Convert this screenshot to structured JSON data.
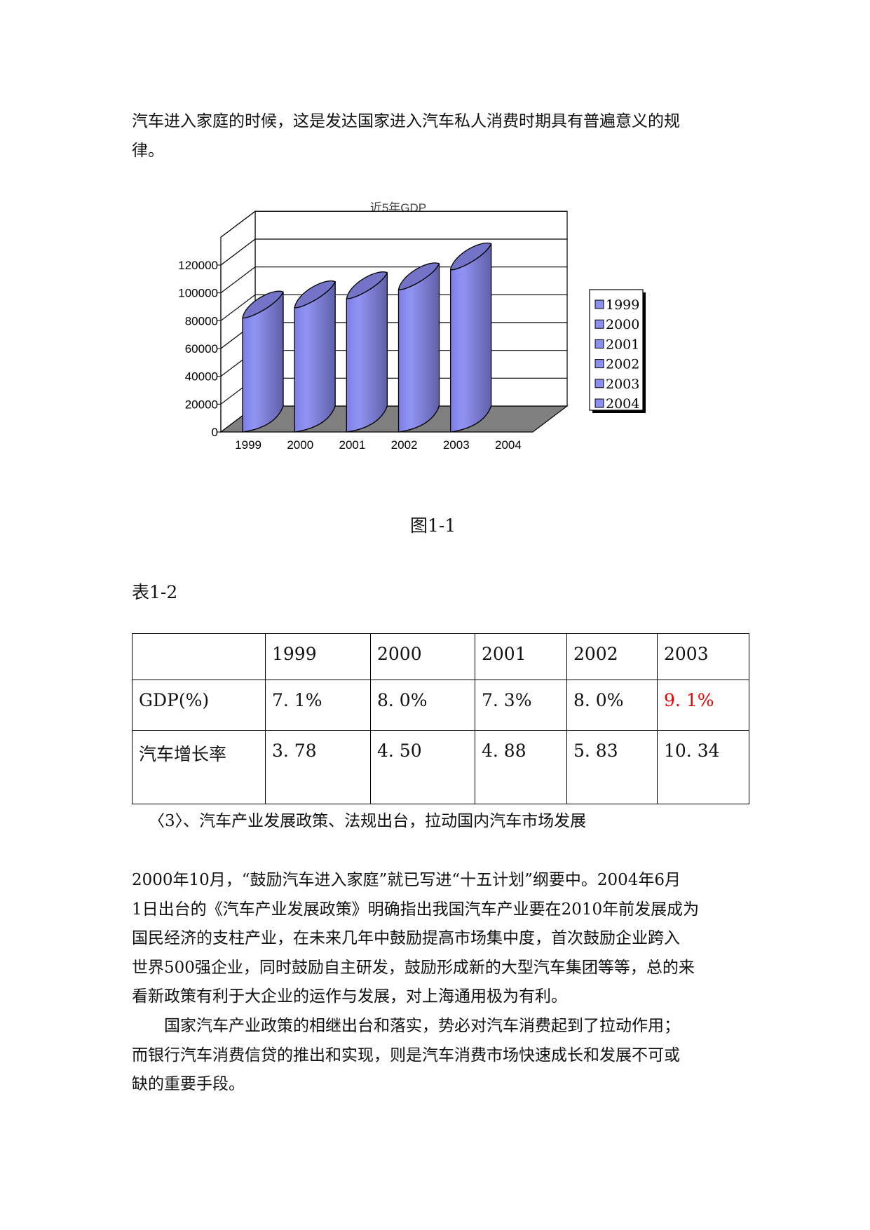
{
  "intro_lines": [
    "汽车进入家庭的时候，这是发达国家进入汽车私人消费时期具有普遍意义的规",
    "律。"
  ],
  "figure_caption": "图1-1",
  "table_caption": "表1-2",
  "chart_data": {
    "type": "bar",
    "style": "3d-cylinder",
    "title": "近5年GDP",
    "categories": [
      "1999",
      "2000",
      "2001",
      "2002",
      "2003",
      "2004"
    ],
    "values": [
      82067,
      89442,
      95933,
      102398,
      116694,
      0
    ],
    "yticks": [
      "0",
      "20000",
      "40000",
      "60000",
      "80000",
      "100000",
      "120000"
    ],
    "ylim": [
      0,
      140000
    ],
    "legend": [
      "1999",
      "2000",
      "2001",
      "2002",
      "2003",
      "2004"
    ],
    "legend_position": "right",
    "grid": true,
    "bar_color": "#8c8ef0",
    "floor_color": "#808080"
  },
  "table": {
    "header": [
      "",
      "1999",
      "2000",
      "2001",
      "2002",
      "2003"
    ],
    "rows": [
      {
        "label": "GDP(%)",
        "cells": [
          "7. 1%",
          "8. 0%",
          "7. 3%",
          "8. 0%",
          "9. 1%"
        ]
      },
      {
        "label": "汽车增长率",
        "cells": [
          "3. 78",
          "4. 50",
          "4. 88",
          "5. 83",
          "10. 34"
        ]
      }
    ],
    "highlight_color": "#e00000"
  },
  "subheading": "〈3〉、汽车产业发展政策、法规出台，拉动国内汽车市场发展",
  "body_lines": [
    "2000年10月，“鼓励汽车进入家庭”就已写进“十五计划”纲要中。2004年6月",
    "1日出台的《汽车产业发展政策》明确指出我国汽车产业要在2010年前发展成为",
    "国民经济的支柱产业，在未来几年中鼓励提高市场集中度，首次鼓励企业跨入",
    "世界500强企业，同时鼓励自主研发，鼓励形成新的大型汽车集团等等，总的来",
    "看新政策有利于大企业的运作与发展，对上海通用极为有利。",
    "　　国家汽车产业政策的相继出台和落实，势必对汽车消费起到了拉动作用；",
    "而银行汽车消费信贷的推出和实现，则是汽车消费市场快速成长和发展不可或",
    "缺的重要手段。"
  ]
}
